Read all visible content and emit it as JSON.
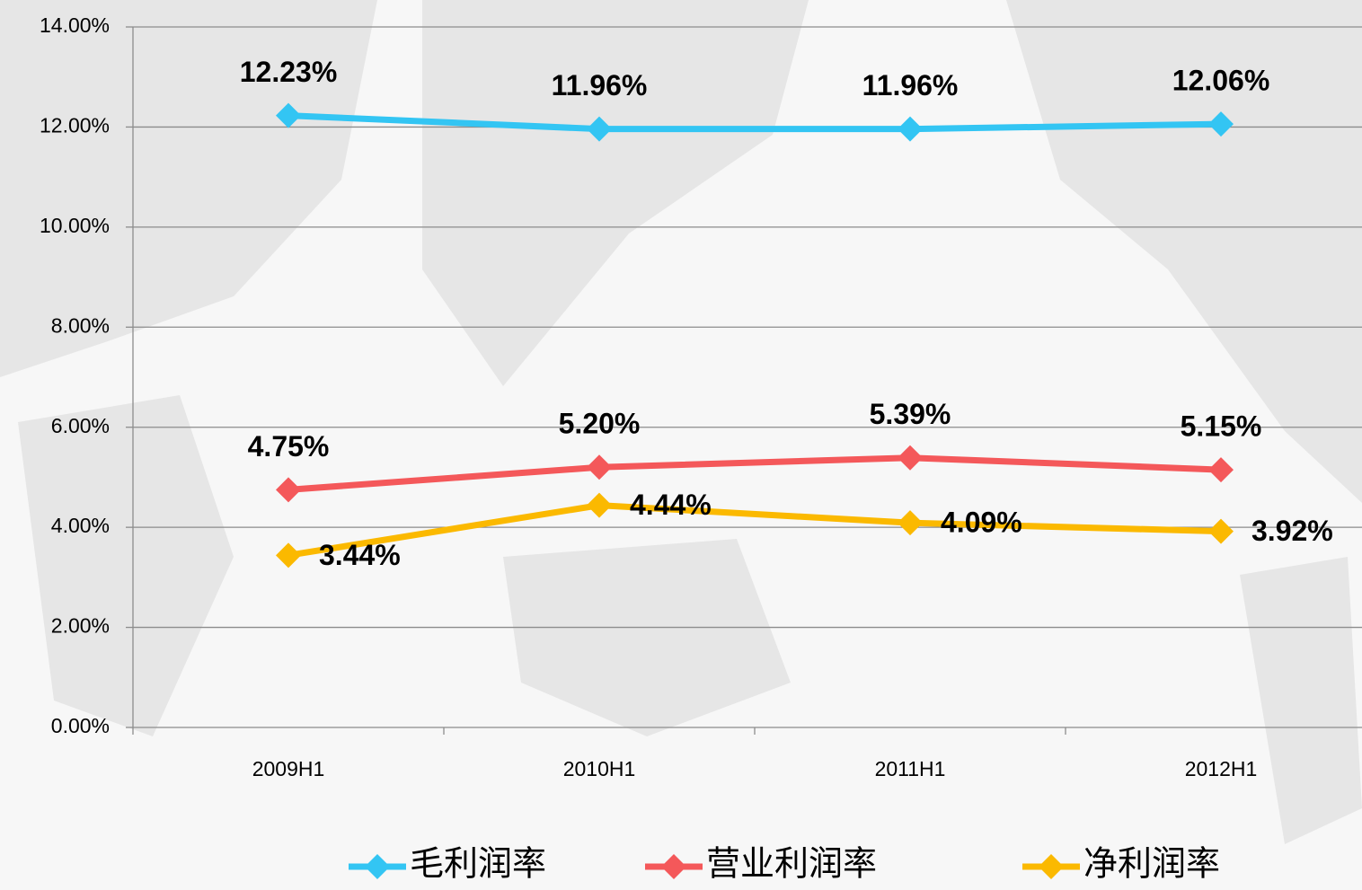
{
  "chart_data": {
    "type": "line",
    "categories": [
      "2009H1",
      "2010H1",
      "2011H1",
      "2012H1"
    ],
    "series": [
      {
        "name": "毛利润率",
        "color": "#33c5f3",
        "values": [
          12.23,
          11.96,
          11.96,
          12.06
        ],
        "value_labels": [
          "12.23%",
          "11.96%",
          "11.96%",
          "12.06%"
        ]
      },
      {
        "name": "营业利润率",
        "color": "#f4585a",
        "values": [
          4.75,
          5.2,
          5.39,
          5.15
        ],
        "value_labels": [
          "4.75%",
          "5.20%",
          "5.39%",
          "5.15%"
        ]
      },
      {
        "name": "净利润率",
        "color": "#fbb900",
        "values": [
          3.44,
          4.44,
          4.09,
          3.92
        ],
        "value_labels": [
          "3.44%",
          "4.44%",
          "4.09%",
          "3.92%"
        ]
      }
    ],
    "ylim": [
      0,
      14
    ],
    "yticks": [
      {
        "value": 0,
        "label": "0.00%"
      },
      {
        "value": 2,
        "label": "2.00%"
      },
      {
        "value": 4,
        "label": "4.00%"
      },
      {
        "value": 6,
        "label": "6.00%"
      },
      {
        "value": 8,
        "label": "8.00%"
      },
      {
        "value": 10,
        "label": "10.00%"
      },
      {
        "value": 12,
        "label": "12.00%"
      },
      {
        "value": 14,
        "label": "14.00%"
      }
    ],
    "grid": true,
    "legend": "bottom"
  }
}
